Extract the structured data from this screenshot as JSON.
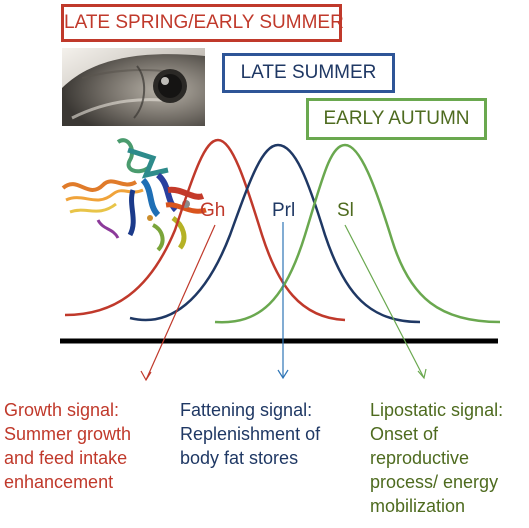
{
  "seasons": {
    "spring": {
      "label": "LATE SPRING/EARLY SUMMER",
      "color": "#c0392b"
    },
    "summer": {
      "label": "LATE SUMMER",
      "color": "#2e5597"
    },
    "autumn": {
      "label": "EARLY AUTUMN",
      "color": "#6aa84f"
    }
  },
  "hormones": {
    "gh": {
      "label": "Gh",
      "color": "#c0392b"
    },
    "prl": {
      "label": "Prl",
      "color": "#1f3864"
    },
    "sl": {
      "label": "Sl",
      "color": "#6aa84f"
    }
  },
  "signals": {
    "growth": {
      "text": "Growth signal:\nSummer growth\nand feed intake\nenhancement",
      "color": "#c0392b"
    },
    "fattening": {
      "text": "Fattening signal:\nReplenishment of\nbody fat stores",
      "color": "#1f3864"
    },
    "lipostatic": {
      "text": "Lipostatic signal:\nOnset of\nreproductive\nprocess/ energy\nmobilization",
      "color": "#4e6b1f"
    }
  },
  "icons": {
    "fish": "fish-photo",
    "protein": "protein-structure"
  }
}
